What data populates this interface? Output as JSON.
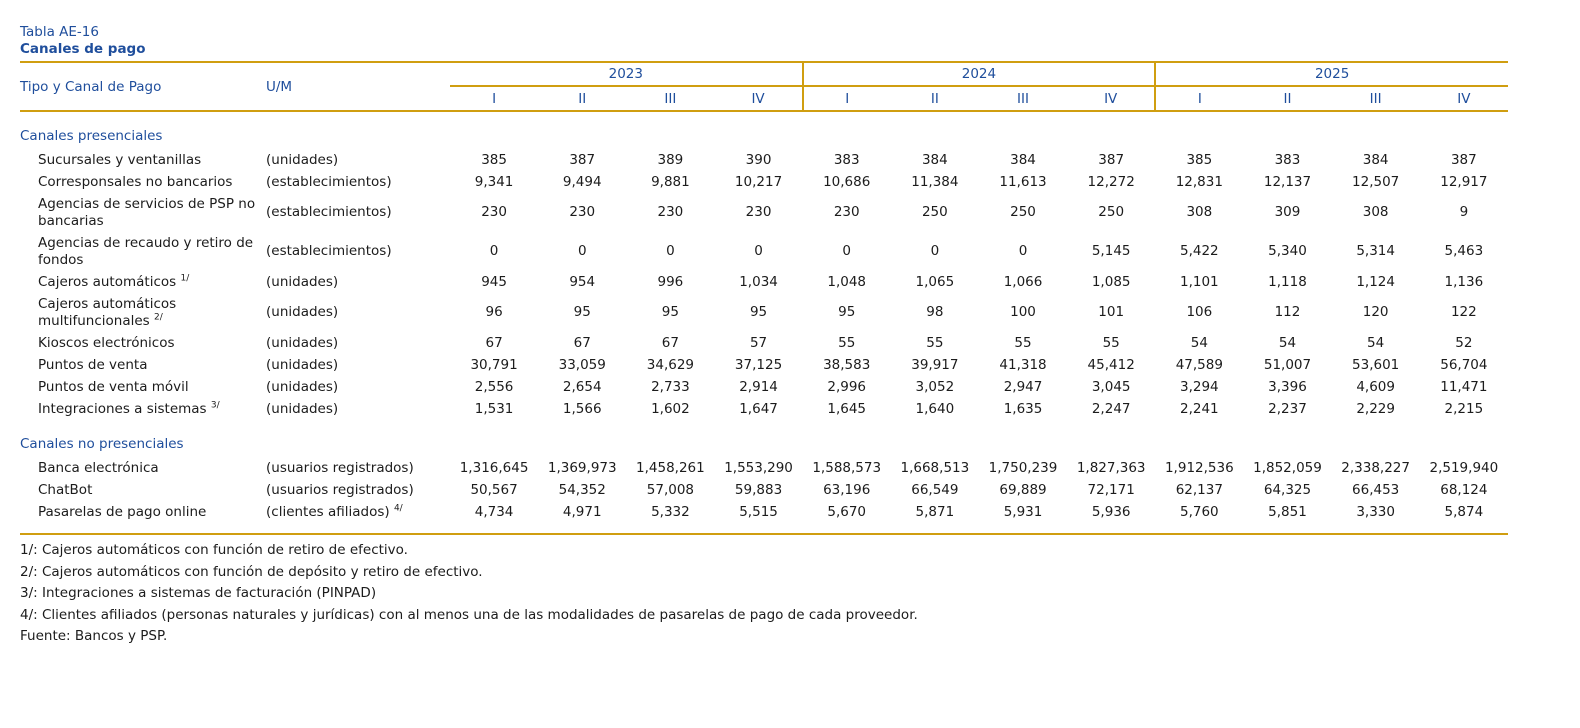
{
  "title": {
    "table_id": "Tabla AE-16",
    "subtitle": "Canales de pago"
  },
  "header": {
    "col1": "Tipo y Canal de Pago",
    "col2": "U/M",
    "years": [
      {
        "label": "2023",
        "quarters": [
          "I",
          "II",
          "III",
          "IV"
        ]
      },
      {
        "label": "2024",
        "quarters": [
          "I",
          "II",
          "III",
          "IV"
        ]
      },
      {
        "label": "2025",
        "quarters": [
          "I",
          "II",
          "III",
          "IV"
        ]
      }
    ]
  },
  "sections": [
    {
      "name": "Canales presenciales",
      "rows": [
        {
          "label": "Sucursales y ventanillas",
          "sup": "",
          "um": "(unidades)",
          "um_sup": "",
          "values": [
            "385",
            "387",
            "389",
            "390",
            "383",
            "384",
            "384",
            "387",
            "385",
            "383",
            "384",
            "387"
          ]
        },
        {
          "label": "Corresponsales no bancarios",
          "sup": "",
          "um": "(establecimientos)",
          "um_sup": "",
          "values": [
            "9,341",
            "9,494",
            "9,881",
            "10,217",
            "10,686",
            "11,384",
            "11,613",
            "12,272",
            "12,831",
            "12,137",
            "12,507",
            "12,917"
          ]
        },
        {
          "label": "Agencias de servicios de PSP no bancarias",
          "sup": "",
          "um": "(establecimientos)",
          "um_sup": "",
          "values": [
            "230",
            "230",
            "230",
            "230",
            "230",
            "250",
            "250",
            "250",
            "308",
            "309",
            "308",
            "9"
          ]
        },
        {
          "label": "Agencias de recaudo y retiro de fondos",
          "sup": "",
          "um": "(establecimientos)",
          "um_sup": "",
          "values": [
            "0",
            "0",
            "0",
            "0",
            "0",
            "0",
            "0",
            "5,145",
            "5,422",
            "5,340",
            "5,314",
            "5,463"
          ]
        },
        {
          "label": "Cajeros automáticos",
          "sup": "1/",
          "um": "(unidades)",
          "um_sup": "",
          "values": [
            "945",
            "954",
            "996",
            "1,034",
            "1,048",
            "1,065",
            "1,066",
            "1,085",
            "1,101",
            "1,118",
            "1,124",
            "1,136"
          ]
        },
        {
          "label": "Cajeros automáticos multifuncionales",
          "sup": "2/",
          "um": "(unidades)",
          "um_sup": "",
          "values": [
            "96",
            "95",
            "95",
            "95",
            "95",
            "98",
            "100",
            "101",
            "106",
            "112",
            "120",
            "122"
          ]
        },
        {
          "label": "Kioscos electrónicos",
          "sup": "",
          "um": "(unidades)",
          "um_sup": "",
          "values": [
            "67",
            "67",
            "67",
            "57",
            "55",
            "55",
            "55",
            "55",
            "54",
            "54",
            "54",
            "52"
          ]
        },
        {
          "label": "Puntos de venta",
          "sup": "",
          "um": "(unidades)",
          "um_sup": "",
          "values": [
            "30,791",
            "33,059",
            "34,629",
            "37,125",
            "38,583",
            "39,917",
            "41,318",
            "45,412",
            "47,589",
            "51,007",
            "53,601",
            "56,704"
          ]
        },
        {
          "label": "Puntos de venta móvil",
          "sup": "",
          "um": "(unidades)",
          "um_sup": "",
          "values": [
            "2,556",
            "2,654",
            "2,733",
            "2,914",
            "2,996",
            "3,052",
            "2,947",
            "3,045",
            "3,294",
            "3,396",
            "4,609",
            "11,471"
          ]
        },
        {
          "label": "Integraciones a sistemas",
          "sup": "3/",
          "um": "(unidades)",
          "um_sup": "",
          "values": [
            "1,531",
            "1,566",
            "1,602",
            "1,647",
            "1,645",
            "1,640",
            "1,635",
            "2,247",
            "2,241",
            "2,237",
            "2,229",
            "2,215"
          ]
        }
      ]
    },
    {
      "name": "Canales no presenciales",
      "rows": [
        {
          "label": "Banca electrónica",
          "sup": "",
          "um": "(usuarios registrados)",
          "um_sup": "",
          "values": [
            "1,316,645",
            "1,369,973",
            "1,458,261",
            "1,553,290",
            "1,588,573",
            "1,668,513",
            "1,750,239",
            "1,827,363",
            "1,912,536",
            "1,852,059",
            "2,338,227",
            "2,519,940"
          ]
        },
        {
          "label": "ChatBot",
          "sup": "",
          "um": "(usuarios registrados)",
          "um_sup": "",
          "values": [
            "50,567",
            "54,352",
            "57,008",
            "59,883",
            "63,196",
            "66,549",
            "69,889",
            "72,171",
            "62,137",
            "64,325",
            "66,453",
            "68,124"
          ]
        },
        {
          "label": "Pasarelas de pago online",
          "sup": "",
          "um": "(clientes afiliados)",
          "um_sup": "4/",
          "values": [
            "4,734",
            "4,971",
            "5,332",
            "5,515",
            "5,670",
            "5,871",
            "5,931",
            "5,936",
            "5,760",
            "5,851",
            "3,330",
            "5,874"
          ]
        }
      ]
    }
  ],
  "footnotes": [
    "1/: Cajeros automáticos con función de retiro de efectivo.",
    "2/: Cajeros automáticos con función de depósito y retiro de efectivo.",
    "3/: Integraciones a sistemas de facturación (PINPAD)",
    "4/: Clientes afiliados (personas naturales y jurídicas) con al menos una de las modalidades de pasarelas de pago de cada proveedor.",
    "Fuente: Bancos y PSP."
  ],
  "colors": {
    "heading_blue": "#1F4E9C",
    "accent_gold": "#D09E10"
  }
}
